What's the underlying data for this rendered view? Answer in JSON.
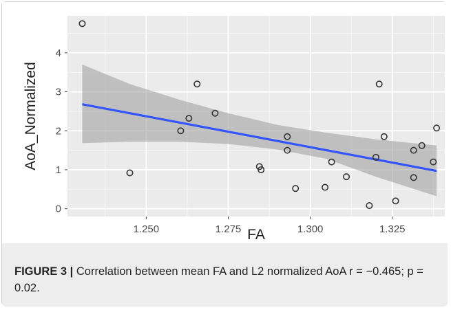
{
  "caption": {
    "label": "FIGURE 3 |",
    "text": " Correlation between mean FA and L2 normalized AoA r = −0.465; p = 0.02."
  },
  "chart_data": {
    "type": "scatter",
    "title": "",
    "xlabel": "FA",
    "ylabel": "AoA_Normalized",
    "xlim": [
      1.226,
      1.341
    ],
    "ylim": [
      -0.2,
      4.95
    ],
    "xticks": [
      1.25,
      1.275,
      1.3,
      1.325
    ],
    "xtick_labels": [
      "1.250",
      "1.275",
      "1.300",
      "1.325"
    ],
    "yticks": [
      0,
      1,
      2,
      3,
      4
    ],
    "ytick_labels": [
      "0",
      "1",
      "2",
      "3",
      "4"
    ],
    "grid": true,
    "panel_background": "#ebebeb",
    "grid_color": "#ffffff",
    "point_color": "#333333",
    "line_color": "#3355ff",
    "band_color": "#9a9a9a",
    "points": [
      {
        "x": 1.2305,
        "y": 4.75
      },
      {
        "x": 1.245,
        "y": 0.92
      },
      {
        "x": 1.2605,
        "y": 2.0
      },
      {
        "x": 1.263,
        "y": 2.32
      },
      {
        "x": 1.2655,
        "y": 3.2
      },
      {
        "x": 1.271,
        "y": 2.45
      },
      {
        "x": 1.2845,
        "y": 1.08
      },
      {
        "x": 1.285,
        "y": 1.0
      },
      {
        "x": 1.293,
        "y": 1.85
      },
      {
        "x": 1.293,
        "y": 1.5
      },
      {
        "x": 1.2955,
        "y": 0.52
      },
      {
        "x": 1.3045,
        "y": 0.55
      },
      {
        "x": 1.3065,
        "y": 1.2
      },
      {
        "x": 1.311,
        "y": 0.82
      },
      {
        "x": 1.318,
        "y": 0.08
      },
      {
        "x": 1.32,
        "y": 1.32
      },
      {
        "x": 1.321,
        "y": 3.2
      },
      {
        "x": 1.3225,
        "y": 1.85
      },
      {
        "x": 1.326,
        "y": 0.2
      },
      {
        "x": 1.3315,
        "y": 1.5
      },
      {
        "x": 1.3315,
        "y": 0.8
      },
      {
        "x": 1.334,
        "y": 1.62
      },
      {
        "x": 1.3375,
        "y": 1.2
      },
      {
        "x": 1.3385,
        "y": 2.07
      }
    ],
    "fit_line": {
      "x": [
        1.2305,
        1.3385
      ],
      "y": [
        2.68,
        0.97
      ]
    },
    "confidence_band": {
      "x": [
        1.2305,
        1.245,
        1.26,
        1.275,
        1.29,
        1.305,
        1.32,
        1.3385
      ],
      "upper": [
        3.7,
        3.2,
        2.8,
        2.45,
        2.15,
        1.95,
        1.78,
        1.62
      ],
      "lower": [
        1.68,
        1.72,
        1.72,
        1.66,
        1.52,
        1.28,
        0.82,
        0.32
      ]
    }
  }
}
